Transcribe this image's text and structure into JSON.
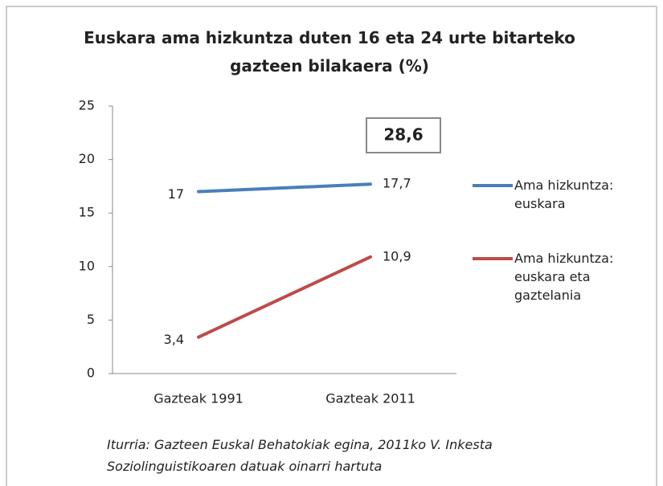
{
  "chart_data": {
    "type": "line",
    "title": "Euskara ama hizkuntza duten 16 eta 24 urte bitarteko gazteen bilakaera (%)",
    "categories": [
      "Gazteak 1991",
      "Gazteak 2011"
    ],
    "series": [
      {
        "name": "Ama hizkuntza: euskara",
        "color": "#4a7ebb",
        "values": [
          17,
          17.7
        ],
        "value_labels": [
          "17",
          "17,7"
        ]
      },
      {
        "name": "Ama hizkuntza: euskara eta gaztelania",
        "color": "#be4b48",
        "values": [
          3.4,
          10.9
        ],
        "value_labels": [
          "3,4",
          "10,9"
        ]
      }
    ],
    "annotation": "28,6",
    "source": "Iturria: Gazteen Euskal Behatokiak egina, 2011ko V. Inkesta Soziolinguistikoaren datuak oinarri hartuta",
    "ylim": [
      0,
      25
    ],
    "yticks": [
      0,
      5,
      10,
      15,
      20,
      25
    ],
    "grid": false,
    "legend": "right"
  }
}
